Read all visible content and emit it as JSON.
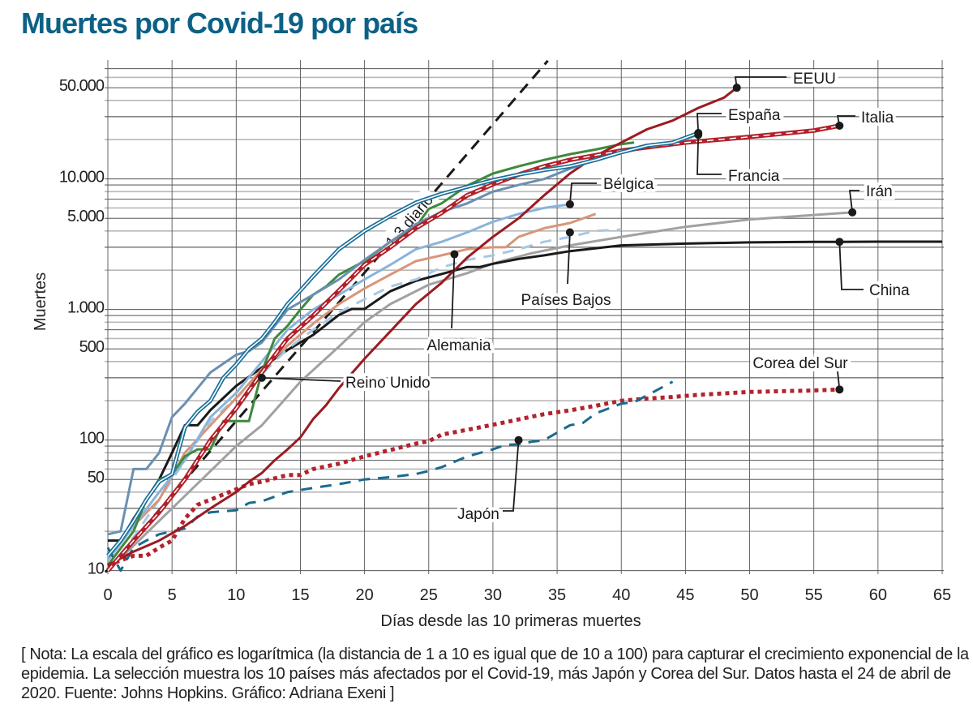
{
  "title": "Muertes por Covid-19 por país",
  "note": "[ Nota: La escala del gráfico es logarítmica (la distancia de 1 a 10 es igual que de 10 a 100) para capturar el crecimiento exponencial de la epidemia. La selección muestra los 10 países más afectados por el Covid-19, más Japón y Corea del Sur. Datos hasta el 24 de abril de 2020. Fuente: Johns Hopkins. Gráfico: Adriana Exeni ]",
  "chart_data": {
    "type": "line",
    "title": "Muertes por Covid-19 por país",
    "xlabel": "Días desde las 10 primeras muertes",
    "ylabel": "Muertes",
    "yscale": "log",
    "xlim": [
      0,
      65
    ],
    "ylim": [
      10,
      70000
    ],
    "grid": true,
    "x_ticks": [
      "0",
      "5",
      "10",
      "15",
      "20",
      "25",
      "30",
      "35",
      "40",
      "45",
      "50",
      "55",
      "60",
      "65"
    ],
    "y_ticks": [
      {
        "value": 10,
        "label": "10"
      },
      {
        "value": 50,
        "label": "50"
      },
      {
        "value": 100,
        "label": "100"
      },
      {
        "value": 500,
        "label": "500"
      },
      {
        "value": 1000,
        "label": "1.000"
      },
      {
        "value": 5000,
        "label": "5.000"
      },
      {
        "value": 10000,
        "label": "10.000"
      },
      {
        "value": 50000,
        "label": "50.000"
      }
    ],
    "reference_line": {
      "label": "1,3 diario",
      "growth_factor": 1.3,
      "start_value": 10,
      "color": "#1a1a1a"
    },
    "series": [
      {
        "name": "EEUU",
        "color": "#9b1b22",
        "style": "solid",
        "x": [
          0,
          2,
          4,
          6,
          8,
          10,
          11,
          12,
          13,
          14,
          15,
          16,
          17,
          18,
          20,
          22,
          24,
          26,
          28,
          30,
          32,
          34,
          36,
          38,
          40,
          42,
          44,
          46,
          48,
          49
        ],
        "y": [
          11,
          14,
          17,
          22,
          30,
          40,
          48,
          56,
          70,
          85,
          105,
          145,
          185,
          250,
          420,
          680,
          1100,
          1600,
          2500,
          3600,
          5000,
          7500,
          11000,
          15000,
          19000,
          24000,
          28000,
          35000,
          42000,
          50000
        ]
      },
      {
        "name": "España",
        "color": "#1a6f99",
        "style": "double",
        "x": [
          0,
          1,
          2,
          3,
          4,
          5,
          6,
          7,
          8,
          9,
          10,
          11,
          12,
          13,
          14,
          15,
          16,
          18,
          20,
          22,
          24,
          26,
          28,
          30,
          32,
          34,
          36,
          38,
          40,
          42,
          44,
          46
        ],
        "y": [
          13,
          17,
          24,
          35,
          48,
          55,
          125,
          165,
          200,
          300,
          380,
          500,
          600,
          800,
          1100,
          1400,
          1800,
          2900,
          4000,
          5200,
          6600,
          7700,
          8700,
          9800,
          10800,
          11700,
          12500,
          14000,
          16000,
          18000,
          19000,
          22500
        ]
      },
      {
        "name": "Francia",
        "color": "#6a90b2",
        "style": "solid",
        "x": [
          0,
          1,
          2,
          3,
          4,
          5,
          6,
          8,
          10,
          11,
          12,
          14,
          16,
          18,
          20,
          22,
          24,
          26,
          28,
          30,
          32,
          34,
          36,
          38,
          40,
          42,
          44,
          46
        ],
        "y": [
          19,
          20,
          60,
          60,
          80,
          150,
          190,
          330,
          450,
          480,
          560,
          1000,
          1300,
          1700,
          2400,
          3300,
          4500,
          5600,
          6500,
          8000,
          9000,
          10000,
          12000,
          14000,
          15800,
          17500,
          19000,
          21800
        ]
      },
      {
        "name": "Italia",
        "color": "#b3202a",
        "style": "striped",
        "x": [
          0,
          2,
          4,
          6,
          8,
          10,
          12,
          14,
          16,
          18,
          20,
          22,
          24,
          26,
          28,
          30,
          32,
          34,
          36,
          40,
          45,
          50,
          55,
          57
        ],
        "y": [
          10,
          17,
          28,
          50,
          100,
          175,
          330,
          600,
          900,
          1400,
          2200,
          3000,
          4200,
          5500,
          7500,
          9100,
          10800,
          12500,
          14000,
          16500,
          19000,
          21000,
          23500,
          25600
        ]
      },
      {
        "name": "Reino Unido",
        "color": "#3d8a3c",
        "style": "solid",
        "x": [
          0,
          2,
          3,
          4,
          5,
          6,
          7,
          8,
          9,
          10,
          11,
          12,
          13,
          14,
          15,
          16,
          17,
          18,
          20,
          22,
          24,
          25,
          26,
          28,
          30,
          32,
          34,
          36,
          38,
          40,
          41
        ],
        "y": [
          11,
          20,
          35,
          50,
          55,
          75,
          85,
          85,
          140,
          140,
          140,
          335,
          600,
          750,
          1000,
          1300,
          1500,
          1850,
          2350,
          3300,
          4300,
          5900,
          6500,
          8900,
          11000,
          12500,
          14000,
          15500,
          16800,
          18500,
          19000
        ]
      },
      {
        "name": "Bélgica",
        "color": "#8ab4da",
        "style": "solid",
        "x": [
          0,
          2,
          4,
          6,
          8,
          10,
          12,
          14,
          16,
          18,
          20,
          22,
          24,
          26,
          28,
          30,
          32,
          34,
          36
        ],
        "y": [
          12,
          22,
          40,
          70,
          150,
          230,
          400,
          700,
          1000,
          1300,
          1700,
          2200,
          2900,
          3300,
          3900,
          4700,
          5400,
          6000,
          6400
        ]
      },
      {
        "name": "Alemania",
        "color": "#d9957a",
        "style": "solid",
        "x": [
          0,
          2,
          4,
          6,
          8,
          10,
          12,
          14,
          16,
          18,
          20,
          22,
          24,
          26,
          28,
          30,
          31,
          32,
          34,
          36,
          38
        ],
        "y": [
          12,
          22,
          35,
          80,
          130,
          210,
          350,
          530,
          780,
          1100,
          1450,
          1850,
          2350,
          2600,
          2900,
          3000,
          3000,
          3600,
          4200,
          4600,
          5400
        ]
      },
      {
        "name": "Países Bajos",
        "color": "#a9c8e4",
        "style": "dashed",
        "x": [
          0,
          2,
          4,
          6,
          8,
          10,
          12,
          14,
          16,
          18,
          20,
          22,
          24,
          26,
          28,
          30,
          32,
          34,
          36,
          38,
          40
        ],
        "y": [
          10,
          18,
          35,
          70,
          140,
          210,
          320,
          500,
          700,
          950,
          1200,
          1500,
          1700,
          2100,
          2400,
          2600,
          2900,
          3300,
          3600,
          4000,
          4100
        ]
      },
      {
        "name": "Irán",
        "color": "#a1a1a3",
        "style": "solid",
        "x": [
          0,
          5,
          10,
          12,
          15,
          18,
          20,
          22,
          25,
          28,
          30,
          33,
          36,
          40,
          45,
          50,
          55,
          58
        ],
        "y": [
          10,
          30,
          90,
          130,
          280,
          520,
          800,
          1100,
          1550,
          1900,
          2250,
          2700,
          3100,
          3600,
          4300,
          4900,
          5300,
          5550
        ]
      },
      {
        "name": "China",
        "color": "#1a1a1a",
        "style": "solid",
        "x": [
          0,
          1,
          2,
          4,
          5,
          6,
          7,
          8,
          10,
          12,
          14,
          16,
          18,
          19,
          20,
          22,
          24,
          26,
          28,
          29,
          30,
          31,
          32,
          34,
          36,
          40,
          45,
          50,
          55,
          57,
          60,
          65
        ],
        "y": [
          17,
          17,
          25,
          50,
          80,
          130,
          130,
          170,
          260,
          360,
          490,
          640,
          910,
          1010,
          1010,
          1380,
          1660,
          1870,
          2120,
          2120,
          2240,
          2340,
          2440,
          2600,
          2800,
          3100,
          3200,
          3270,
          3300,
          3300,
          3310,
          3310
        ]
      },
      {
        "name": "Corea del Sur",
        "color": "#b4232d",
        "style": "dotted",
        "x": [
          0,
          1,
          2,
          3,
          4,
          5,
          6,
          7,
          8,
          10,
          11,
          12,
          14,
          15,
          16,
          18,
          20,
          22,
          24,
          25,
          26,
          28,
          30,
          32,
          34,
          36,
          38,
          40,
          42,
          44,
          46,
          50,
          55,
          57
        ],
        "y": [
          11,
          12,
          13,
          13,
          15,
          17,
          25,
          32,
          35,
          42,
          46,
          48,
          54,
          54,
          60,
          66,
          75,
          84,
          94,
          98,
          110,
          120,
          131,
          144,
          158,
          169,
          183,
          200,
          208,
          214,
          222,
          234,
          240,
          244
        ]
      },
      {
        "name": "Japón",
        "color": "#1b6a90",
        "style": "dashed",
        "x": [
          0,
          1,
          2,
          3,
          4,
          5,
          6,
          7,
          8,
          10,
          11,
          12,
          14,
          16,
          18,
          20,
          22,
          24,
          25,
          26,
          28,
          30,
          31,
          32,
          33,
          34,
          36,
          37,
          38,
          40,
          41,
          42,
          44
        ],
        "y": [
          15,
          10,
          15,
          17,
          19,
          20,
          21,
          26,
          28,
          29,
          33,
          34,
          40,
          43,
          46,
          50,
          52,
          55,
          58,
          62,
          75,
          85,
          92,
          93,
          97,
          100,
          130,
          135,
          160,
          190,
          195,
          220,
          280
        ]
      }
    ],
    "labels": [
      {
        "series": "EEUU",
        "text": "EEUU"
      },
      {
        "series": "España",
        "text": "España"
      },
      {
        "series": "Italia",
        "text": "Italia"
      },
      {
        "series": "Francia",
        "text": "Francia"
      },
      {
        "series": "Irán",
        "text": "Irán"
      },
      {
        "series": "Bélgica",
        "text": "Bélgica"
      },
      {
        "series": "China",
        "text": "China"
      },
      {
        "series": "Países Bajos",
        "text": "Países Bajos"
      },
      {
        "series": "Alemania",
        "text": "Alemania"
      },
      {
        "series": "Reino Unido",
        "text": "Reino Unido"
      },
      {
        "series": "Corea del Sur",
        "text": "Corea del Sur"
      },
      {
        "series": "Japón",
        "text": "Japón"
      }
    ]
  }
}
